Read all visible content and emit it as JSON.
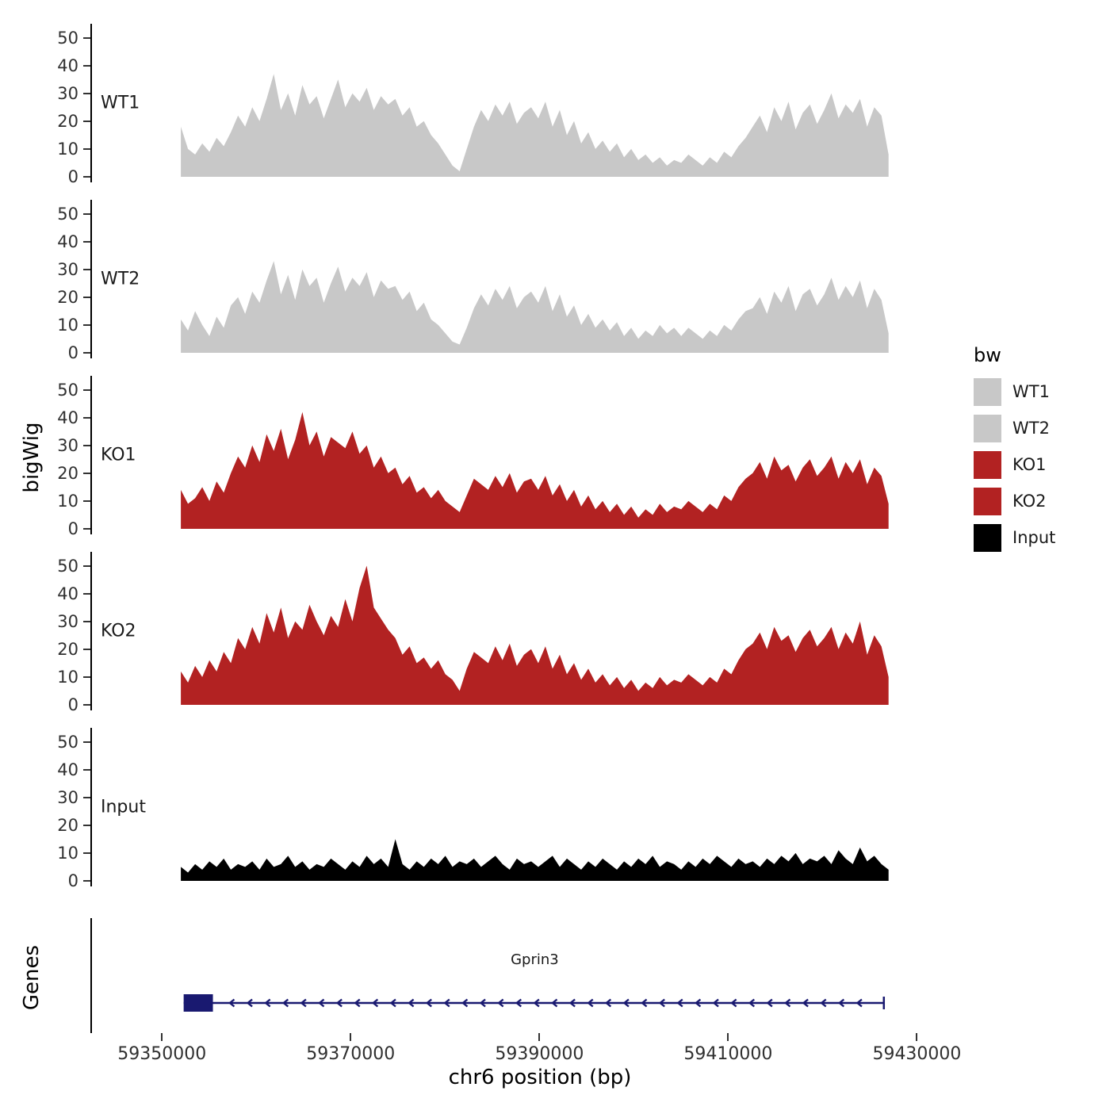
{
  "figure": {
    "y_axis_label": "bigWig",
    "genes_axis_label": "Genes",
    "x_axis_label": "chr6 position (bp)"
  },
  "chart_data": {
    "type": "area",
    "title": "",
    "xlabel": "chr6 position (bp)",
    "ylabel": "bigWig",
    "x_domain": [
      59342500,
      59434500
    ],
    "x_ticks": [
      59350000,
      59370000,
      59390000,
      59410000,
      59430000
    ],
    "y_ticks": [
      0,
      10,
      20,
      30,
      40,
      50
    ],
    "y_domain": [
      -2,
      55
    ],
    "grid": "off",
    "data_x_start": 59352000,
    "data_x_end": 59427000,
    "tracks": [
      {
        "name": "WT1",
        "color": "#c8c8c8",
        "values": [
          18,
          10,
          8,
          12,
          9,
          14,
          11,
          16,
          22,
          18,
          25,
          20,
          28,
          37,
          24,
          30,
          22,
          33,
          26,
          29,
          21,
          28,
          35,
          25,
          30,
          27,
          32,
          24,
          29,
          26,
          28,
          22,
          25,
          18,
          20,
          15,
          12,
          8,
          4,
          2,
          10,
          18,
          24,
          20,
          26,
          22,
          27,
          19,
          23,
          25,
          21,
          27,
          18,
          24,
          15,
          20,
          12,
          16,
          10,
          13,
          9,
          12,
          7,
          10,
          6,
          8,
          5,
          7,
          4,
          6,
          5,
          8,
          6,
          4,
          7,
          5,
          9,
          7,
          11,
          14,
          18,
          22,
          16,
          25,
          20,
          27,
          17,
          23,
          26,
          19,
          24,
          30,
          21,
          26,
          23,
          28,
          18,
          25,
          22,
          8
        ]
      },
      {
        "name": "WT2",
        "color": "#c8c8c8",
        "values": [
          12,
          8,
          15,
          10,
          6,
          13,
          9,
          17,
          20,
          14,
          22,
          18,
          26,
          33,
          21,
          28,
          19,
          30,
          24,
          27,
          18,
          25,
          31,
          22,
          27,
          24,
          29,
          20,
          26,
          23,
          24,
          19,
          22,
          15,
          18,
          12,
          10,
          7,
          4,
          3,
          9,
          16,
          21,
          17,
          23,
          19,
          24,
          16,
          20,
          22,
          18,
          24,
          15,
          21,
          13,
          17,
          10,
          14,
          9,
          12,
          8,
          11,
          6,
          9,
          5,
          8,
          6,
          10,
          7,
          9,
          6,
          9,
          7,
          5,
          8,
          6,
          10,
          8,
          12,
          15,
          16,
          20,
          14,
          22,
          18,
          24,
          15,
          21,
          23,
          17,
          21,
          27,
          19,
          24,
          20,
          26,
          16,
          23,
          19,
          7
        ]
      },
      {
        "name": "KO1",
        "color": "#b22222",
        "values": [
          14,
          9,
          11,
          15,
          10,
          17,
          13,
          20,
          26,
          22,
          30,
          24,
          34,
          28,
          36,
          25,
          32,
          42,
          30,
          35,
          26,
          33,
          31,
          29,
          35,
          27,
          30,
          22,
          26,
          20,
          22,
          16,
          19,
          13,
          15,
          11,
          14,
          10,
          8,
          6,
          12,
          18,
          16,
          14,
          19,
          15,
          20,
          13,
          17,
          18,
          14,
          19,
          12,
          16,
          10,
          14,
          8,
          12,
          7,
          10,
          6,
          9,
          5,
          8,
          4,
          7,
          5,
          9,
          6,
          8,
          7,
          10,
          8,
          6,
          9,
          7,
          12,
          10,
          15,
          18,
          20,
          24,
          18,
          26,
          21,
          23,
          17,
          22,
          25,
          19,
          22,
          26,
          18,
          24,
          20,
          25,
          16,
          22,
          19,
          9
        ]
      },
      {
        "name": "KO2",
        "color": "#b22222",
        "values": [
          12,
          8,
          14,
          10,
          16,
          12,
          19,
          15,
          24,
          20,
          28,
          22,
          33,
          26,
          35,
          24,
          30,
          27,
          36,
          30,
          25,
          32,
          28,
          38,
          30,
          42,
          50,
          35,
          31,
          27,
          24,
          18,
          21,
          15,
          17,
          13,
          16,
          11,
          9,
          5,
          13,
          19,
          17,
          15,
          21,
          16,
          22,
          14,
          18,
          20,
          15,
          21,
          13,
          18,
          11,
          15,
          9,
          13,
          8,
          11,
          7,
          10,
          6,
          9,
          5,
          8,
          6,
          10,
          7,
          9,
          8,
          11,
          9,
          7,
          10,
          8,
          13,
          11,
          16,
          20,
          22,
          26,
          20,
          28,
          23,
          25,
          19,
          24,
          27,
          21,
          24,
          28,
          20,
          26,
          22,
          30,
          18,
          25,
          21,
          10
        ]
      },
      {
        "name": "Input",
        "color": "#000000",
        "values": [
          5,
          3,
          6,
          4,
          7,
          5,
          8,
          4,
          6,
          5,
          7,
          4,
          8,
          5,
          6,
          9,
          5,
          7,
          4,
          6,
          5,
          8,
          6,
          4,
          7,
          5,
          9,
          6,
          8,
          5,
          15,
          6,
          4,
          7,
          5,
          8,
          6,
          9,
          5,
          7,
          6,
          8,
          5,
          7,
          9,
          6,
          4,
          8,
          6,
          7,
          5,
          7,
          9,
          5,
          8,
          6,
          4,
          7,
          5,
          8,
          6,
          4,
          7,
          5,
          8,
          6,
          9,
          5,
          7,
          6,
          4,
          7,
          5,
          8,
          6,
          9,
          7,
          5,
          8,
          6,
          7,
          5,
          8,
          6,
          9,
          7,
          10,
          6,
          8,
          7,
          9,
          6,
          11,
          8,
          6,
          12,
          7,
          9,
          6,
          4
        ]
      }
    ],
    "legend": {
      "title": "bw",
      "position": "right",
      "entries": [
        {
          "label": "WT1",
          "color": "#c8c8c8"
        },
        {
          "label": "WT2",
          "color": "#c8c8c8"
        },
        {
          "label": "KO1",
          "color": "#b22222"
        },
        {
          "label": "KO2",
          "color": "#b22222"
        },
        {
          "label": "Input",
          "color": "#000000"
        }
      ]
    },
    "gene_track": {
      "label": "Genes",
      "gene": {
        "name": "Gprin3",
        "strand": "-",
        "color": "#191970",
        "box_start": 59352300,
        "box_end": 59355400,
        "line_start": 59352300,
        "line_end": 59426500,
        "arrow_start": 59357200,
        "arrow_end": 59425500,
        "arrow_spacing_bp": 1900,
        "name_x": 59389500
      }
    }
  }
}
